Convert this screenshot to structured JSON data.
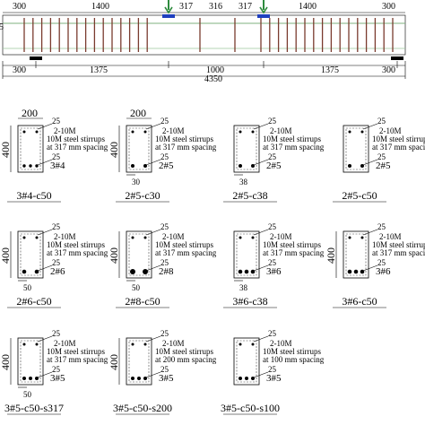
{
  "beam": {
    "top_dims": [
      "300",
      "1400",
      "317",
      "316",
      "317",
      "1400",
      "300"
    ],
    "bottom_dims": [
      "300",
      "1375",
      "1000",
      "1375",
      "300"
    ],
    "total_length": "4350",
    "left_edge_glyph": "5"
  },
  "colors": {
    "stirrup": "#7a3b2e",
    "top_rebar": "#7fb27f",
    "load_arrow": "#2e8b3e",
    "support_plate": "#1f3fbf",
    "dimension": "#000000"
  },
  "sections": [
    {
      "width": "200",
      "height": "400",
      "cover_top": "25",
      "top_bars": "2-10M",
      "stirrup_line1": "10M steel stirrups",
      "stirrup_line2": "at 317 mm spacing",
      "cover_bottom": "25",
      "bottom_bars": "3#4",
      "side_dim": "",
      "label": "3#4-c50"
    },
    {
      "width": "200",
      "height": "400",
      "cover_top": "25",
      "top_bars": "2-10M",
      "stirrup_line1": "10M steel stirrups",
      "stirrup_line2": "at 317 mm spacing",
      "cover_bottom": "25",
      "bottom_bars": "2#5",
      "side_dim": "30",
      "label": "2#5-c30"
    },
    {
      "width": "",
      "height": "",
      "cover_top": "25",
      "top_bars": "2-10M",
      "stirrup_line1": "10M steel stirrups",
      "stirrup_line2": "at 317 mm spacing",
      "cover_bottom": "25",
      "bottom_bars": "2#5",
      "side_dim": "38",
      "label": "2#5-c38"
    },
    {
      "width": "",
      "height": "",
      "cover_top": "25",
      "top_bars": "2-10M",
      "stirrup_line1": "10M steel stirrups",
      "stirrup_line2": "at 317 mm spacing",
      "cover_bottom": "25",
      "bottom_bars": "2#5",
      "side_dim": "",
      "label": "2#5-c50"
    },
    {
      "width": "",
      "height": "400",
      "cover_top": "25",
      "top_bars": "2-10M",
      "stirrup_line1": "10M steel stirrups",
      "stirrup_line2": "at 317 mm spacing",
      "cover_bottom": "25",
      "bottom_bars": "2#6",
      "side_dim": "50",
      "label": "2#6-c50"
    },
    {
      "width": "",
      "height": "400",
      "cover_top": "25",
      "top_bars": "2-10M",
      "stirrup_line1": "10M steel stirrups",
      "stirrup_line2": "at 317 mm spacing",
      "cover_bottom": "25",
      "bottom_bars": "2#8",
      "side_dim": "50",
      "label": "2#8-c50"
    },
    {
      "width": "",
      "height": "",
      "cover_top": "25",
      "top_bars": "2-10M",
      "stirrup_line1": "10M steel stirrups",
      "stirrup_line2": "at 317 mm spacing",
      "cover_bottom": "25",
      "bottom_bars": "3#6",
      "side_dim": "38",
      "label": "3#6-c38"
    },
    {
      "width": "",
      "height": "400",
      "cover_top": "25",
      "top_bars": "2-10M",
      "stirrup_line1": "10M steel stirrups",
      "stirrup_line2": "at 317 mm spacing",
      "cover_bottom": "25",
      "bottom_bars": "3#6",
      "side_dim": "",
      "label": "3#6-c50"
    },
    {
      "width": "",
      "height": "400",
      "cover_top": "25",
      "top_bars": "2-10M",
      "stirrup_line1": "10M steel stirrups",
      "stirrup_line2": "at 317 mm spacing",
      "cover_bottom": "25",
      "bottom_bars": "3#5",
      "side_dim": "50",
      "label": "3#5-c50-s317"
    },
    {
      "width": "",
      "height": "400",
      "cover_top": "25",
      "top_bars": "2-10M",
      "stirrup_line1": "10M steel stirrups",
      "stirrup_line2": "at 200 mm spacing",
      "cover_bottom": "25",
      "bottom_bars": "3#5",
      "side_dim": "",
      "label": "3#5-c50-s200"
    },
    {
      "width": "",
      "height": "",
      "cover_top": "25",
      "top_bars": "2-10M",
      "stirrup_line1": "10M steel stirrups",
      "stirrup_line2": "at 100 mm spacing",
      "cover_bottom": "25",
      "bottom_bars": "3#5",
      "side_dim": "",
      "label": "3#5-c50-s100"
    }
  ]
}
